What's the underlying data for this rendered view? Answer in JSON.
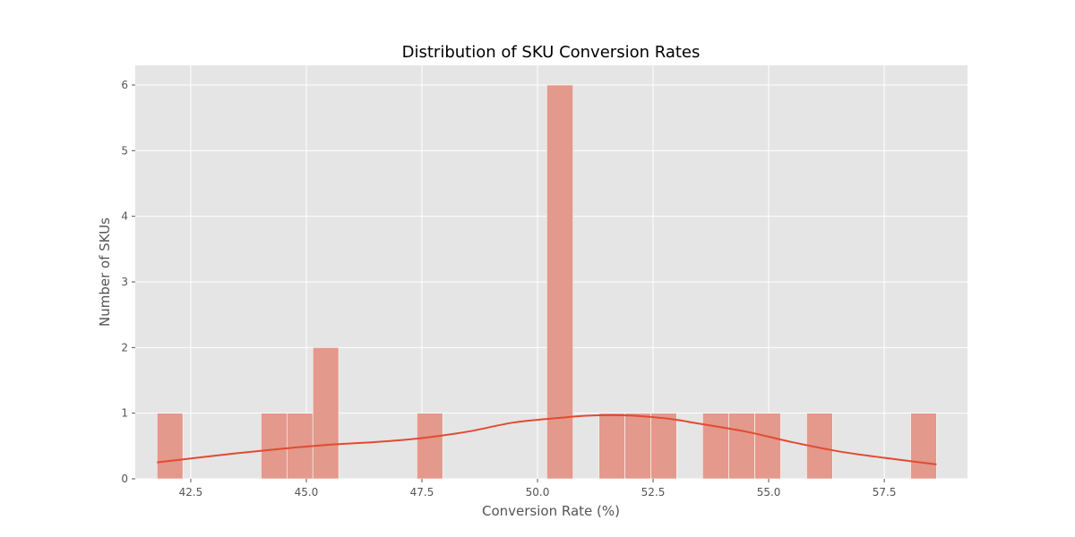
{
  "chart_data": {
    "type": "bar",
    "title": "Distribution of SKU Conversion Rates",
    "xlabel": "Conversion Rate (%)",
    "ylabel": "Number of SKUs",
    "xlim": [
      41.3,
      59.3
    ],
    "ylim": [
      0,
      6.3
    ],
    "grid": true,
    "x_ticks": [
      42.5,
      45.0,
      47.5,
      50.0,
      52.5,
      55.0,
      57.5
    ],
    "x_tick_labels": [
      "42.5",
      "45.0",
      "47.5",
      "50.0",
      "52.5",
      "55.0",
      "57.5"
    ],
    "y_ticks": [
      0,
      1,
      2,
      3,
      4,
      5,
      6
    ],
    "y_tick_labels": [
      "0",
      "1",
      "2",
      "3",
      "4",
      "5",
      "6"
    ],
    "bins": [
      {
        "x0": 41.77,
        "x1": 42.33,
        "count": 1
      },
      {
        "x0": 44.02,
        "x1": 44.58,
        "count": 1
      },
      {
        "x0": 44.58,
        "x1": 45.14,
        "count": 1
      },
      {
        "x0": 45.14,
        "x1": 45.7,
        "count": 2
      },
      {
        "x0": 47.39,
        "x1": 47.95,
        "count": 1
      },
      {
        "x0": 50.2,
        "x1": 50.77,
        "count": 6
      },
      {
        "x0": 51.33,
        "x1": 51.89,
        "count": 1
      },
      {
        "x0": 51.89,
        "x1": 52.45,
        "count": 1
      },
      {
        "x0": 52.45,
        "x1": 53.01,
        "count": 1
      },
      {
        "x0": 53.57,
        "x1": 54.14,
        "count": 1
      },
      {
        "x0": 54.14,
        "x1": 54.7,
        "count": 1
      },
      {
        "x0": 54.7,
        "x1": 55.26,
        "count": 1
      },
      {
        "x0": 55.82,
        "x1": 56.38,
        "count": 1
      },
      {
        "x0": 58.07,
        "x1": 58.63,
        "count": 1
      }
    ],
    "kde": {
      "name": "KDE",
      "x": [
        41.77,
        42.5,
        43.5,
        44.5,
        45.5,
        46.5,
        47.5,
        48.5,
        49.5,
        50.5,
        51.0,
        51.5,
        52.0,
        52.5,
        53.0,
        53.5,
        54.5,
        55.5,
        56.5,
        57.5,
        58.63
      ],
      "y": [
        0.25,
        0.31,
        0.39,
        0.46,
        0.52,
        0.56,
        0.62,
        0.72,
        0.86,
        0.93,
        0.96,
        0.97,
        0.965,
        0.94,
        0.9,
        0.84,
        0.72,
        0.56,
        0.42,
        0.32,
        0.22
      ]
    },
    "colors": {
      "bar_fill": "#E3998B",
      "kde_line": "#E24A33",
      "plot_background": "#E5E5E5",
      "grid": "#FFFFFF"
    }
  }
}
